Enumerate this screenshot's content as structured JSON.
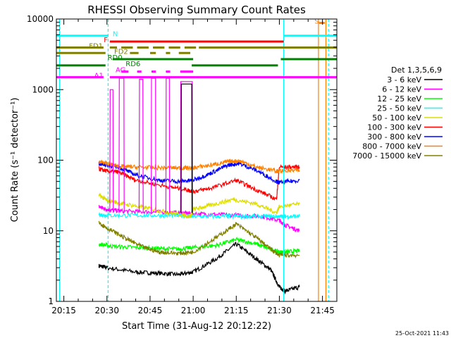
{
  "chart_data": {
    "type": "line",
    "title": "RHESSI Observing Summary Count Rates",
    "xlabel": "Start Time (31-Aug-12 20:12:22)",
    "ylabel": "Count Rate (s⁻¹ detector⁻¹)",
    "yscale": "log",
    "ylim": [
      1,
      10000
    ],
    "xlim_minutes_of_day": [
      1212.4,
      1310
    ],
    "x_ticks": [
      {
        "label": "20:15",
        "t": 1215
      },
      {
        "label": "20:30",
        "t": 1230
      },
      {
        "label": "20:45",
        "t": 1245
      },
      {
        "label": "21:00",
        "t": 1260
      },
      {
        "label": "21:15",
        "t": 1275
      },
      {
        "label": "21:30",
        "t": 1290
      },
      {
        "label": "21:45",
        "t": 1305
      }
    ],
    "y_ticks": [
      {
        "label": "1",
        "v": 1
      },
      {
        "label": "10",
        "v": 10
      },
      {
        "label": "100",
        "v": 100
      },
      {
        "label": "1000",
        "v": 1000
      },
      {
        "label": "10000",
        "v": 10000
      }
    ],
    "legend_title": "Det 1,3,5,6,9",
    "legend_position": "right",
    "series": [
      {
        "name": "3 - 6 keV",
        "color": "#000000",
        "t": [
          1227.2,
          1230,
          1240,
          1248,
          1255,
          1260,
          1268,
          1275,
          1282,
          1287,
          1290,
          1292,
          1297
        ],
        "v": [
          3.2,
          3.0,
          2.6,
          2.5,
          2.4,
          2.6,
          4.0,
          6.5,
          4.0,
          2.8,
          1.6,
          1.4,
          1.6
        ]
      },
      {
        "name": "6 - 12 keV",
        "color": "#ff00ff",
        "t": [
          1227.2,
          1230,
          1235,
          1245,
          1255,
          1260,
          1268,
          1276,
          1284,
          1290,
          1292,
          1297
        ],
        "v": [
          22,
          20,
          19,
          18.5,
          18,
          17.5,
          17,
          16.5,
          16,
          14,
          12,
          10
        ]
      },
      {
        "name": "12 - 25 keV",
        "color": "#00ff00",
        "t": [
          1227.2,
          1232,
          1240,
          1248,
          1255,
          1260,
          1268,
          1275,
          1282,
          1287,
          1290,
          1292,
          1297
        ],
        "v": [
          6.5,
          6.0,
          5.8,
          5.6,
          5.5,
          5.8,
          6.2,
          7.5,
          6.5,
          5.5,
          5.0,
          5.0,
          5.2
        ]
      },
      {
        "name": "25 - 50 keV",
        "color": "#00ffff",
        "t": [
          1227.2,
          1230,
          1240,
          1250,
          1258,
          1260,
          1268,
          1276,
          1284,
          1290,
          1292,
          1297
        ],
        "v": [
          17,
          16.5,
          16.5,
          16.5,
          16.3,
          16,
          16,
          16,
          16,
          16,
          16,
          16
        ]
      },
      {
        "name": "50 - 100 keV",
        "color": "#dddd00",
        "t": [
          1227.2,
          1230,
          1236,
          1244,
          1252,
          1259,
          1260,
          1266,
          1274,
          1282,
          1289,
          1290,
          1297
        ],
        "v": [
          32,
          27,
          24,
          21,
          18,
          16,
          20,
          23,
          28,
          24,
          18,
          22,
          24
        ]
      },
      {
        "name": "100 - 300 keV",
        "color": "#ff0000",
        "t": [
          1227.2,
          1230,
          1234,
          1240,
          1250,
          1258,
          1260,
          1266,
          1275,
          1282,
          1289,
          1290,
          1297
        ],
        "v": [
          75,
          70,
          68,
          52,
          43,
          38,
          36,
          40,
          52,
          38,
          28,
          80,
          80
        ]
      },
      {
        "name": "300 - 800 keV",
        "color": "#0000ff",
        "t": [
          1227.2,
          1230,
          1234,
          1240,
          1248,
          1255,
          1260,
          1266,
          1272,
          1276,
          1282,
          1289,
          1290,
          1297
        ],
        "v": [
          90,
          85,
          80,
          62,
          52,
          50,
          52,
          65,
          85,
          90,
          72,
          50,
          48,
          52
        ]
      },
      {
        "name": "800 - 7000 keV",
        "color": "#ff8000",
        "t": [
          1227.2,
          1230,
          1234,
          1240,
          1248,
          1255,
          1260,
          1266,
          1272,
          1276,
          1282,
          1289,
          1290,
          1297
        ],
        "v": [
          95,
          90,
          82,
          80,
          78,
          78,
          78,
          85,
          95,
          98,
          80,
          70,
          70,
          72
        ]
      },
      {
        "name": "7000 - 15000 keV",
        "color": "#808000",
        "t": [
          1227.2,
          1230,
          1236,
          1242,
          1248,
          1255,
          1260,
          1268,
          1275,
          1282,
          1287,
          1290,
          1297
        ],
        "v": [
          13,
          11,
          8,
          6,
          5,
          4.8,
          5,
          8,
          12.5,
          8,
          5.5,
          4.5,
          4.5
        ]
      }
    ],
    "spikes": [
      {
        "t0": 1231.0,
        "t1": 1232.2,
        "v": 1000,
        "color": "#ff00ff"
      },
      {
        "t0": 1234.2,
        "t1": 1236.0,
        "v": 1450,
        "color": "#ff00ff"
      },
      {
        "t0": 1241.2,
        "t1": 1242.6,
        "v": 1400,
        "color": "#ff00ff"
      },
      {
        "t0": 1245.4,
        "t1": 1247.0,
        "v": 1450,
        "color": "#ff00ff"
      },
      {
        "t0": 1250.5,
        "t1": 1251.8,
        "v": 1450,
        "color": "#ff00ff"
      },
      {
        "t0": 1255.6,
        "t1": 1259.8,
        "v": 1300,
        "color": "#ff00ff"
      },
      {
        "t0": 1255.8,
        "t1": 1259.6,
        "v": 1200,
        "color": "#000000"
      }
    ],
    "flag_bars": [
      {
        "label": "N",
        "color": "#00ffff",
        "label_t": 1232.0,
        "label_side": "left",
        "v": 5800,
        "segments": [
          [
            1212.4,
            1230.5
          ],
          [
            1291.5,
            1310
          ]
        ]
      },
      {
        "label": "S",
        "color": "#ff8000",
        "label_t": 1302.2,
        "label_side": "left",
        "v": 8800,
        "segments": [
          [
            1303.8,
            1305.8
          ]
        ]
      },
      {
        "label": "F",
        "color": "#ff0000",
        "label_t": 1230.3,
        "label_side": "right",
        "v": 4800,
        "segments": [
          [
            1231.0,
            1291.5
          ]
        ]
      },
      {
        "label": "FD1",
        "color": "#808000",
        "label_t": 1228.6,
        "label_side": "right",
        "v": 3950,
        "segments": [
          [
            1212.4,
            1228.8
          ],
          [
            1231.0,
            1233.5
          ],
          [
            1235.0,
            1239.0
          ],
          [
            1240.5,
            1244.5
          ],
          [
            1246.0,
            1250.0
          ],
          [
            1251.5,
            1255.5
          ],
          [
            1257.0,
            1261.0
          ],
          [
            1262.0,
            1310
          ]
        ]
      },
      {
        "label": "FD2",
        "color": "#808000",
        "label_t": 1232.5,
        "label_side": "left",
        "v": 3300,
        "segments": [
          [
            1212.4,
            1229.5
          ],
          [
            1238.0,
            1241.0
          ],
          [
            1245.0,
            1247.0
          ],
          [
            1250.5,
            1252.0
          ],
          [
            1255.0,
            1259.0
          ]
        ]
      },
      {
        "label": "RD0",
        "color": "#008000",
        "label_t": 1230.2,
        "label_side": "left",
        "v": 2700,
        "segments": [
          [
            1232.0,
            1260.0
          ],
          [
            1290.5,
            1310
          ]
        ]
      },
      {
        "label": "RD6",
        "color": "#008000",
        "label_t": 1236.5,
        "label_side": "left",
        "v": 2200,
        "segments": [
          [
            1212.4,
            1229.5
          ],
          [
            1259.5,
            1289.5
          ]
        ]
      },
      {
        "label": "AG",
        "color": "#ff00ff",
        "label_t": 1233.0,
        "label_side": "left",
        "v": 1800,
        "segments": [
          [
            1235.0,
            1237.5
          ],
          [
            1240.5,
            1242.0
          ],
          [
            1245.5,
            1247.0
          ],
          [
            1250.5,
            1252.0
          ],
          [
            1255.5,
            1260.0
          ]
        ]
      },
      {
        "label": "A1",
        "color": "#ff00ff",
        "label_t": 1228.8,
        "label_side": "right",
        "v": 1500,
        "segments": [
          [
            1212.4,
            1228.8
          ],
          [
            1231.0,
            1310
          ]
        ]
      }
    ],
    "vlines": [
      {
        "t": 1213.5,
        "color": "#00ffff",
        "style": "solid"
      },
      {
        "t": 1230.4,
        "color": "#00ffff",
        "style": "dashed"
      },
      {
        "t": 1291.5,
        "color": "#00ffff",
        "style": "solid"
      },
      {
        "t": 1303.6,
        "color": "#ff8000",
        "style": "solid"
      },
      {
        "t": 1306.2,
        "color": "#ff8000",
        "style": "solid"
      },
      {
        "t": 1307.1,
        "color": "#00ffff",
        "style": "dashed"
      }
    ]
  },
  "footer": {
    "timestamp": "25-Oct-2021 11:43"
  }
}
